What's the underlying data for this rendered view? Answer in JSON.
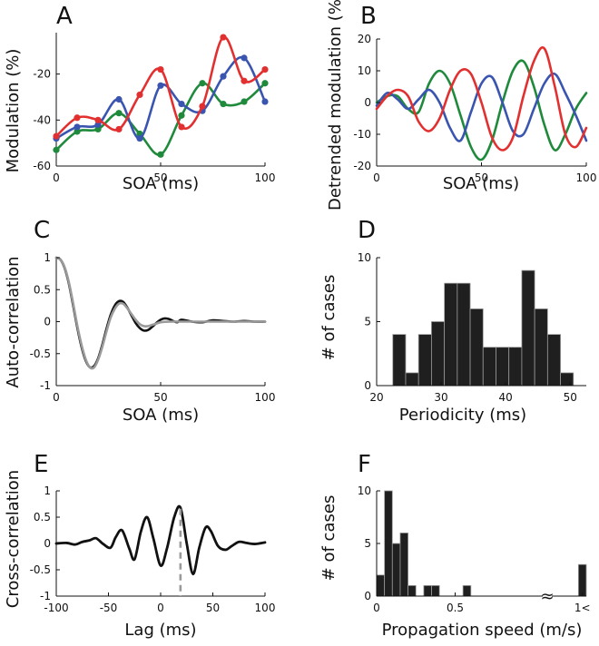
{
  "chart_data": [
    {
      "panel_label": "A",
      "type": "line",
      "xlabel": "SOA (ms)",
      "ylabel": "Modulation (%)",
      "xlim": [
        0,
        100
      ],
      "ylim": [
        -60,
        -2
      ],
      "xticks": [
        0,
        50,
        100
      ],
      "yticks": [
        -60,
        -40,
        -20
      ],
      "series": [
        {
          "name": "green",
          "color": "#1f8a3c",
          "x": [
            0,
            10,
            20,
            30,
            40,
            50,
            60,
            70,
            80,
            90,
            100
          ],
          "y": [
            -53,
            -45,
            -44,
            -37,
            -46,
            -55,
            -38,
            -24,
            -33,
            -32,
            -24
          ]
        },
        {
          "name": "blue",
          "color": "#3a55b0",
          "x": [
            0,
            10,
            20,
            30,
            40,
            50,
            60,
            70,
            80,
            90,
            100
          ],
          "y": [
            -48,
            -43,
            -42,
            -31,
            -48,
            -25,
            -33,
            -36,
            -21,
            -13,
            -32
          ]
        },
        {
          "name": "red",
          "color": "#e23030",
          "x": [
            0,
            10,
            20,
            30,
            40,
            50,
            60,
            70,
            80,
            90,
            100
          ],
          "y": [
            -47,
            -39,
            -40,
            -44,
            -29,
            -18,
            -43,
            -34,
            -4,
            -23,
            -18
          ]
        }
      ]
    },
    {
      "panel_label": "B",
      "type": "line",
      "xlabel": "SOA (ms)",
      "ylabel": "Detrended modulation (%)",
      "xlim": [
        0,
        100
      ],
      "ylim": [
        -20,
        20
      ],
      "xticks": [
        0,
        50,
        100
      ],
      "yticks": [
        -20,
        -10,
        0,
        10,
        20
      ],
      "series": [
        {
          "name": "green",
          "color": "#1f8a3c",
          "x": [
            0,
            5,
            10,
            15,
            20,
            25,
            30,
            35,
            40,
            45,
            50,
            55,
            60,
            65,
            70,
            75,
            80,
            85,
            90,
            95,
            100
          ],
          "y": [
            0,
            2,
            2,
            -2,
            -3,
            6,
            10,
            6,
            -4,
            -14,
            -18,
            -12,
            0,
            10,
            13,
            5,
            -7,
            -15,
            -10,
            -2,
            3
          ]
        },
        {
          "name": "blue",
          "color": "#3a55b0",
          "x": [
            0,
            5,
            10,
            15,
            20,
            25,
            30,
            35,
            40,
            45,
            50,
            55,
            60,
            65,
            70,
            75,
            80,
            85,
            90,
            95,
            100
          ],
          "y": [
            -1,
            3,
            1,
            -2,
            1,
            4,
            0,
            -8,
            -12,
            -3,
            6,
            8,
            0,
            -9,
            -10,
            -2,
            6,
            9,
            3,
            -4,
            -12
          ]
        },
        {
          "name": "red",
          "color": "#e23030",
          "x": [
            0,
            5,
            10,
            15,
            20,
            25,
            30,
            35,
            40,
            45,
            50,
            55,
            60,
            65,
            70,
            75,
            80,
            85,
            90,
            95,
            100
          ],
          "y": [
            -2,
            2,
            4,
            2,
            -6,
            -9,
            -5,
            4,
            10,
            9,
            0,
            -11,
            -15,
            -11,
            2,
            13,
            17,
            5,
            -10,
            -14,
            -8
          ]
        }
      ]
    },
    {
      "panel_label": "C",
      "type": "line",
      "xlabel": "SOA (ms)",
      "ylabel": "Auto-correlation",
      "xlim": [
        0,
        100
      ],
      "ylim": [
        -1,
        1
      ],
      "xticks": [
        0,
        50,
        100
      ],
      "yticks": [
        -1,
        -0.5,
        0,
        0.5,
        1
      ],
      "series": [
        {
          "name": "black",
          "color": "#111111",
          "x": [
            0,
            2,
            4,
            6,
            8,
            10,
            12,
            14,
            16,
            18,
            20,
            22,
            24,
            26,
            28,
            30,
            32,
            34,
            36,
            38,
            40,
            42,
            44,
            46,
            48,
            50,
            52,
            54,
            56,
            58,
            60,
            65,
            70,
            75,
            80,
            85,
            90,
            95,
            100
          ],
          "y": [
            1,
            0.97,
            0.84,
            0.6,
            0.27,
            -0.08,
            -0.38,
            -0.6,
            -0.71,
            -0.7,
            -0.58,
            -0.37,
            -0.12,
            0.1,
            0.25,
            0.32,
            0.31,
            0.22,
            0.1,
            -0.02,
            -0.1,
            -0.14,
            -0.13,
            -0.08,
            -0.02,
            0.03,
            0.05,
            0.04,
            0.01,
            -0.01,
            0.03,
            0.0,
            -0.01,
            0.02,
            0.01,
            0.0,
            0.01,
            0.0,
            0.0
          ]
        },
        {
          "name": "gray",
          "color": "#9a9a9a",
          "x": [
            0,
            2,
            4,
            6,
            8,
            10,
            12,
            14,
            16,
            18,
            20,
            22,
            24,
            26,
            28,
            30,
            32,
            34,
            36,
            38,
            40,
            42,
            44,
            46,
            48,
            50,
            55,
            60,
            70,
            80,
            90,
            100
          ],
          "y": [
            1,
            0.97,
            0.85,
            0.62,
            0.3,
            -0.05,
            -0.35,
            -0.58,
            -0.71,
            -0.72,
            -0.6,
            -0.4,
            -0.16,
            0.06,
            0.2,
            0.28,
            0.28,
            0.21,
            0.12,
            0.03,
            -0.04,
            -0.07,
            -0.07,
            -0.05,
            -0.03,
            -0.01,
            0.0,
            0.0,
            0.0,
            0.0,
            0.0,
            0.0
          ]
        }
      ]
    },
    {
      "panel_label": "D",
      "type": "bar",
      "xlabel": "Periodicity (ms)",
      "ylabel": "# of cases",
      "xlim": [
        20,
        52.5
      ],
      "ylim": [
        0,
        10
      ],
      "xticks": [
        20,
        30,
        40,
        50
      ],
      "yticks": [
        0,
        5,
        10
      ],
      "bin_width": 2,
      "bin_starts": [
        22.5,
        24.5,
        26.5,
        28.5,
        30.5,
        32.5,
        34.5,
        36.5,
        38.5,
        40.5,
        42.5,
        44.5,
        46.5,
        48.5
      ],
      "values": [
        4,
        1,
        4,
        5,
        8,
        8,
        6,
        3,
        3,
        3,
        9,
        6,
        4,
        1
      ],
      "color": "#1f1f1f"
    },
    {
      "panel_label": "E",
      "type": "line",
      "xlabel": "Lag (ms)",
      "ylabel": "Cross-correlation",
      "xlim": [
        -100,
        100
      ],
      "ylim": [
        -1,
        1
      ],
      "xticks": [
        -100,
        -50,
        0,
        50,
        100
      ],
      "yticks": [
        -1,
        -0.5,
        0,
        0.5,
        1
      ],
      "reference_lag": 19,
      "series": [
        {
          "name": "black",
          "color": "#111111",
          "x": [
            -100,
            -90,
            -82,
            -75,
            -68,
            -62,
            -55,
            -48,
            -43,
            -37,
            -30,
            -25,
            -19,
            -13,
            -7,
            0,
            6,
            13,
            19,
            25,
            31,
            37,
            43,
            48,
            55,
            62,
            68,
            75,
            82,
            90,
            100
          ],
          "y": [
            0,
            0.01,
            -0.02,
            0.03,
            0.06,
            0.1,
            -0.01,
            -0.08,
            0.12,
            0.25,
            -0.1,
            -0.3,
            0.22,
            0.5,
            0.1,
            -0.42,
            -0.1,
            0.5,
            0.68,
            0.0,
            -0.58,
            -0.08,
            0.3,
            0.24,
            -0.05,
            -0.12,
            -0.05,
            0.03,
            0.01,
            -0.01,
            0.02
          ]
        }
      ]
    },
    {
      "panel_label": "F",
      "type": "bar",
      "xlabel": "Propagation speed (m/s)",
      "ylabel": "# of cases",
      "ylim": [
        0,
        10
      ],
      "yticks": [
        0,
        5,
        10
      ],
      "xtick_labels": [
        "0",
        "0.5",
        "1<"
      ],
      "break_symbol": "≈",
      "bin_width": 0.05,
      "bin_starts": [
        0,
        0.05,
        0.1,
        0.15,
        0.2,
        0.25,
        0.3,
        0.35,
        0.4,
        0.45,
        0.5,
        0.55
      ],
      "values": [
        2,
        10,
        5,
        6,
        1,
        0,
        1,
        1,
        0,
        0,
        0,
        1
      ],
      "overflow_label": "1<",
      "overflow_value": 3,
      "color": "#1f1f1f"
    }
  ]
}
